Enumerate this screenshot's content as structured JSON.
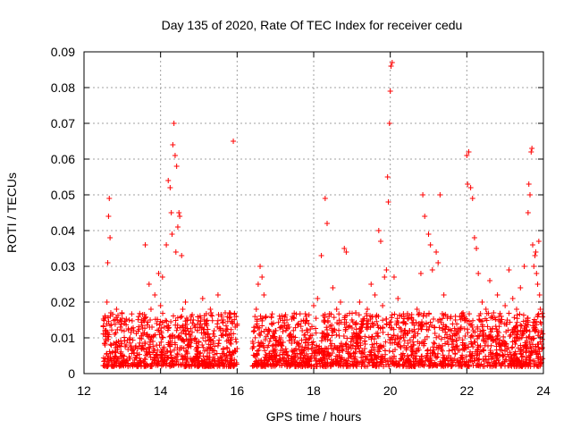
{
  "chart_data": {
    "type": "scatter",
    "title": "Day 135 of 2020, Rate Of TEC Index for receiver cedu",
    "xlabel": "GPS time / hours",
    "ylabel": "ROTI / TECUs",
    "xlim": [
      12,
      24
    ],
    "ylim": [
      0,
      0.09
    ],
    "xticks": [
      "12",
      "14",
      "16",
      "18",
      "20",
      "22",
      "24"
    ],
    "xtick_values": [
      12,
      14,
      16,
      18,
      20,
      22,
      24
    ],
    "yticks": [
      "0",
      "0.01",
      "0.02",
      "0.03",
      "0.04",
      "0.05",
      "0.06",
      "0.07",
      "0.08",
      "0.09"
    ],
    "ytick_values": [
      0,
      0.01,
      0.02,
      0.03,
      0.04,
      0.05,
      0.06,
      0.07,
      0.08,
      0.09
    ],
    "grid": true,
    "marker": "+",
    "color": "#ff0000",
    "series": [
      {
        "name": "ROTI",
        "x": [
          12.55,
          12.58,
          12.6,
          12.62,
          12.64,
          12.66,
          12.68,
          12.7,
          12.75,
          12.8,
          12.85,
          12.9,
          12.95,
          13.0,
          13.05,
          13.1,
          13.2,
          13.3,
          13.4,
          13.5,
          13.6,
          13.65,
          13.7,
          13.75,
          13.8,
          13.85,
          13.9,
          13.95,
          14.0,
          14.05,
          14.1,
          14.15,
          14.2,
          14.25,
          14.28,
          14.3,
          14.32,
          14.35,
          14.38,
          14.4,
          14.42,
          14.45,
          14.48,
          14.5,
          14.55,
          14.58,
          14.6,
          14.62,
          14.65,
          14.7,
          14.75,
          14.8,
          14.9,
          15.0,
          15.1,
          15.2,
          15.3,
          15.4,
          15.5,
          15.6,
          15.7,
          15.8,
          15.9,
          15.95,
          16.0,
          16.4,
          16.45,
          16.5,
          16.55,
          16.6,
          16.65,
          16.7,
          16.75,
          16.8,
          16.85,
          16.9,
          16.95,
          17.0,
          17.1,
          17.2,
          17.3,
          17.4,
          17.5,
          17.6,
          17.7,
          17.8,
          17.9,
          18.0,
          18.1,
          18.2,
          18.3,
          18.35,
          18.4,
          18.5,
          18.6,
          18.7,
          18.8,
          18.85,
          18.9,
          19.0,
          19.1,
          19.2,
          19.3,
          19.4,
          19.5,
          19.6,
          19.7,
          19.75,
          19.8,
          19.85,
          19.9,
          19.93,
          19.95,
          19.98,
          20.0,
          20.02,
          20.05,
          20.1,
          20.2,
          20.3,
          20.4,
          20.5,
          20.6,
          20.7,
          20.75,
          20.8,
          20.85,
          20.9,
          21.0,
          21.05,
          21.1,
          21.15,
          21.2,
          21.25,
          21.3,
          21.4,
          21.5,
          21.6,
          21.7,
          21.8,
          21.85,
          21.9,
          21.95,
          22.0,
          22.02,
          22.05,
          22.1,
          22.15,
          22.2,
          22.25,
          22.3,
          22.4,
          22.5,
          22.6,
          22.7,
          22.8,
          22.9,
          23.0,
          23.1,
          23.2,
          23.3,
          23.4,
          23.5,
          23.55,
          23.6,
          23.62,
          23.65,
          23.68,
          23.7,
          23.72,
          23.75,
          23.78,
          23.8,
          23.82,
          23.85,
          23.88,
          23.9,
          23.92,
          23.95
        ],
        "y": [
          0.008,
          0.012,
          0.02,
          0.031,
          0.044,
          0.049,
          0.038,
          0.017,
          0.006,
          0.011,
          0.018,
          0.009,
          0.013,
          0.005,
          0.014,
          0.008,
          0.01,
          0.012,
          0.007,
          0.015,
          0.036,
          0.011,
          0.025,
          0.018,
          0.009,
          0.022,
          0.014,
          0.028,
          0.019,
          0.027,
          0.013,
          0.036,
          0.054,
          0.052,
          0.045,
          0.039,
          0.064,
          0.07,
          0.061,
          0.034,
          0.058,
          0.041,
          0.045,
          0.044,
          0.033,
          0.018,
          0.012,
          0.009,
          0.02,
          0.015,
          0.011,
          0.016,
          0.013,
          0.009,
          0.021,
          0.014,
          0.018,
          0.012,
          0.022,
          0.015,
          0.011,
          0.017,
          0.065,
          0.013,
          0.007,
          0.007,
          0.012,
          0.018,
          0.025,
          0.03,
          0.027,
          0.022,
          0.016,
          0.011,
          0.009,
          0.014,
          0.008,
          0.012,
          0.01,
          0.013,
          0.015,
          0.011,
          0.009,
          0.014,
          0.012,
          0.016,
          0.01,
          0.019,
          0.021,
          0.033,
          0.049,
          0.042,
          0.016,
          0.024,
          0.018,
          0.02,
          0.035,
          0.034,
          0.013,
          0.015,
          0.017,
          0.02,
          0.014,
          0.018,
          0.025,
          0.022,
          0.04,
          0.037,
          0.019,
          0.027,
          0.029,
          0.055,
          0.048,
          0.07,
          0.079,
          0.086,
          0.087,
          0.027,
          0.021,
          0.016,
          0.014,
          0.012,
          0.015,
          0.018,
          0.014,
          0.028,
          0.05,
          0.044,
          0.039,
          0.036,
          0.029,
          0.013,
          0.034,
          0.031,
          0.05,
          0.022,
          0.016,
          0.012,
          0.015,
          0.01,
          0.013,
          0.017,
          0.015,
          0.061,
          0.053,
          0.062,
          0.052,
          0.049,
          0.038,
          0.035,
          0.028,
          0.02,
          0.018,
          0.026,
          0.017,
          0.022,
          0.016,
          0.019,
          0.029,
          0.021,
          0.018,
          0.024,
          0.03,
          0.012,
          0.045,
          0.053,
          0.05,
          0.062,
          0.063,
          0.036,
          0.03,
          0.033,
          0.034,
          0.028,
          0.025,
          0.037,
          0.022,
          0.018,
          0.012
        ]
      }
    ],
    "band_segments": [
      {
        "start": 12.5,
        "end": 16.0
      },
      {
        "start": 16.4,
        "end": 24.0
      }
    ]
  }
}
